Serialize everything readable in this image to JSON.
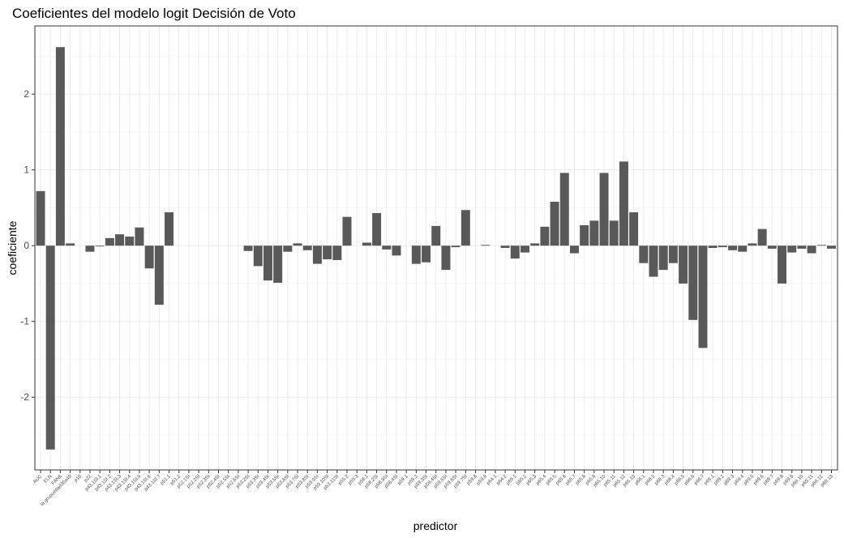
{
  "chart_data": {
    "type": "bar",
    "title": "Coeficientes del modelo logit Decisión de Voto",
    "x_label": "predictor",
    "y_label": "coeficiente",
    "color": "#595959",
    "grid": true,
    "categories": [
      "AUC",
      "ELN",
      "FAN6",
      "la grupoedad30a49",
      "p10",
      "p22",
      "p43.1SI.1",
      "p43.1SI.2",
      "p43.1SI.3",
      "p43.1SI.4",
      "p43.1SI.5",
      "p43.1SI.6",
      "p43.1SI.7",
      "p51.1",
      "p51.2",
      "p52.1SI",
      "p52.2SI",
      "p52.3SI",
      "p52.4SI",
      "p52.5SI",
      "p52.6SI",
      "p53.2SI",
      "p53.3SI",
      "p53.4SI",
      "p53.5SI",
      "p53.6SI",
      "p53.7SI",
      "p53.8SI",
      "p53.9SI",
      "p53.10SI",
      "p53.11SI",
      "p55.2",
      "p55.3",
      "p58.1",
      "p58.2SI",
      "p58.3SI",
      "p58.4SI",
      "p59.1",
      "p59.2",
      "p59.3SI",
      "p59.4SI",
      "p59.5SI",
      "p59.6SI",
      "p59.7SI",
      "p59.8",
      "p59.9",
      "p64.1",
      "p64.2",
      "p65.1",
      "p65.2",
      "p65.3",
      "p65.4",
      "p65.5",
      "p65.6",
      "p65.7",
      "p65.8",
      "p65.9",
      "p65.10",
      "p65.11",
      "p65.12",
      "p65.13",
      "p66.1",
      "p66.2",
      "p66.3",
      "p66.4",
      "p66.5",
      "p66.6",
      "p66.7",
      "p69.1",
      "p69.2",
      "p69.3",
      "p69.4",
      "p69.5",
      "p69.6",
      "p69.7",
      "p69.8",
      "p69.9",
      "p69.10",
      "p69.11",
      "p69.12",
      "p69.13"
    ],
    "values": [
      0.72,
      -2.69,
      2.62,
      0.03,
      0,
      -0.08,
      -0.01,
      0.1,
      0.15,
      0.12,
      0.24,
      -0.3,
      -0.78,
      0.44,
      0,
      0,
      0,
      0,
      0,
      0,
      0,
      -0.07,
      -0.27,
      -0.46,
      -0.49,
      -0.08,
      0.03,
      -0.06,
      -0.24,
      -0.18,
      -0.19,
      0.38,
      0,
      0.04,
      0.43,
      -0.05,
      -0.13,
      0,
      -0.24,
      -0.22,
      0.26,
      -0.32,
      -0.02,
      0.47,
      0,
      0.01,
      0,
      -0.03,
      -0.17,
      -0.09,
      0.03,
      0.25,
      0.58,
      0.96,
      -0.1,
      0.27,
      0.33,
      0.96,
      0.33,
      1.11,
      0.44,
      -0.23,
      -0.41,
      -0.32,
      -0.23,
      -0.5,
      -0.98,
      -1.35,
      -0.03,
      -0.02,
      -0.06,
      -0.08,
      0.03,
      0.22,
      -0.04,
      -0.5,
      -0.09,
      -0.04,
      -0.1,
      0.01,
      -0.04
    ],
    "ylim": [
      -2.96,
      2.9
    ],
    "yticks": [
      -2,
      -1,
      0,
      1,
      2
    ]
  }
}
